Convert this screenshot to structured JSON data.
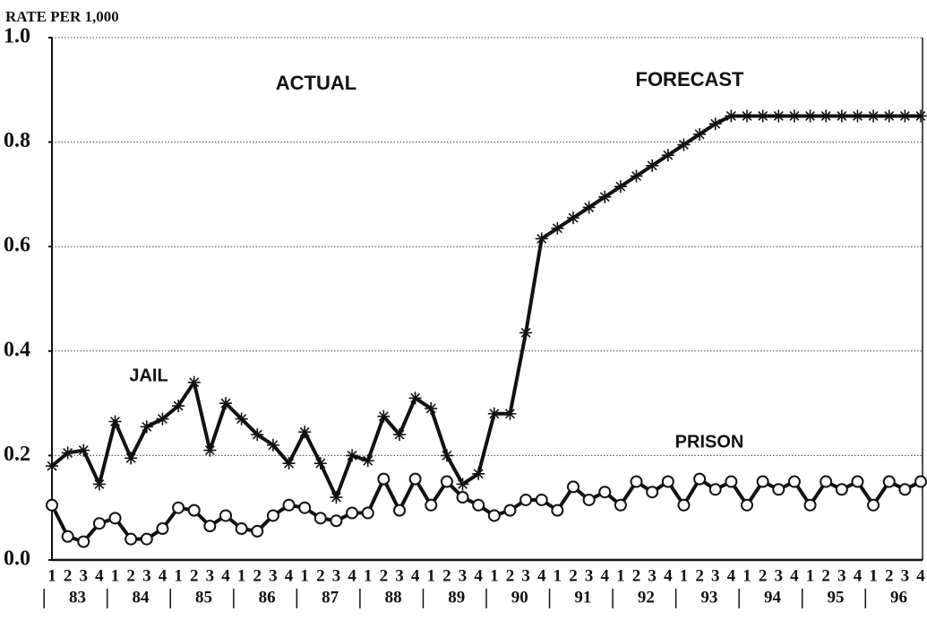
{
  "chart_data": {
    "type": "line",
    "y_label": "RATE PER 1,000",
    "annotations": [
      "ACTUAL",
      "FORECAST",
      "JAIL",
      "PRISON"
    ],
    "categories": [
      "1",
      "2",
      "3",
      "4",
      "1",
      "2",
      "3",
      "4",
      "1",
      "2",
      "3",
      "4",
      "1",
      "2",
      "3",
      "4",
      "1",
      "2",
      "3",
      "4",
      "1",
      "2",
      "3",
      "4",
      "1",
      "2",
      "3",
      "4",
      "1",
      "2",
      "3",
      "4",
      "1",
      "2",
      "3",
      "4",
      "1",
      "2",
      "3",
      "4",
      "1",
      "2",
      "3",
      "4",
      "1",
      "2",
      "3",
      "4",
      "1",
      "2",
      "3",
      "4",
      "1",
      "2",
      "3",
      "4"
    ],
    "year_labels": [
      "83",
      "84",
      "85",
      "86",
      "87",
      "88",
      "89",
      "90",
      "91",
      "92",
      "93",
      "94",
      "95",
      "96"
    ],
    "ylim": [
      0,
      1
    ],
    "yticks": [
      {
        "value": 0,
        "label": "0.0"
      },
      0.2,
      0.4,
      0.6,
      0.8,
      {
        "value": 1,
        "label": "1.0"
      }
    ],
    "grid": true,
    "series": [
      {
        "name": "JAIL",
        "color": "#111111",
        "marker": "asterisk",
        "values": [
          0.18,
          0.205,
          0.21,
          0.145,
          0.265,
          0.195,
          0.255,
          0.27,
          0.295,
          0.34,
          0.21,
          0.3,
          0.27,
          0.24,
          0.22,
          0.185,
          0.245,
          0.185,
          0.12,
          0.2,
          0.19,
          0.275,
          0.24,
          0.31,
          0.29,
          0.2,
          0.145,
          0.165,
          0.28,
          0.28,
          0.435,
          0.615,
          0.635,
          0.655,
          0.675,
          0.695,
          0.715,
          0.735,
          0.755,
          0.775,
          0.795,
          0.815,
          0.835,
          0.85,
          0.85,
          0.85,
          0.85,
          0.85,
          0.85,
          0.85,
          0.85,
          0.85,
          0.85,
          0.85,
          0.85,
          0.85
        ]
      },
      {
        "name": "PRISON",
        "color": "#111111",
        "marker": "circle",
        "values": [
          0.105,
          0.045,
          0.035,
          0.07,
          0.08,
          0.04,
          0.04,
          0.06,
          0.1,
          0.095,
          0.065,
          0.085,
          0.06,
          0.055,
          0.085,
          0.105,
          0.1,
          0.08,
          0.075,
          0.09,
          0.09,
          0.155,
          0.095,
          0.155,
          0.105,
          0.15,
          0.12,
          0.105,
          0.085,
          0.095,
          0.115,
          0.115,
          0.095,
          0.14,
          0.115,
          0.13,
          0.105,
          0.15,
          0.13,
          0.15,
          0.105,
          0.155,
          0.135,
          0.15,
          0.105,
          0.15,
          0.135,
          0.15,
          0.105,
          0.15,
          0.135,
          0.15,
          0.105,
          0.15,
          0.135,
          0.15
        ]
      }
    ]
  }
}
